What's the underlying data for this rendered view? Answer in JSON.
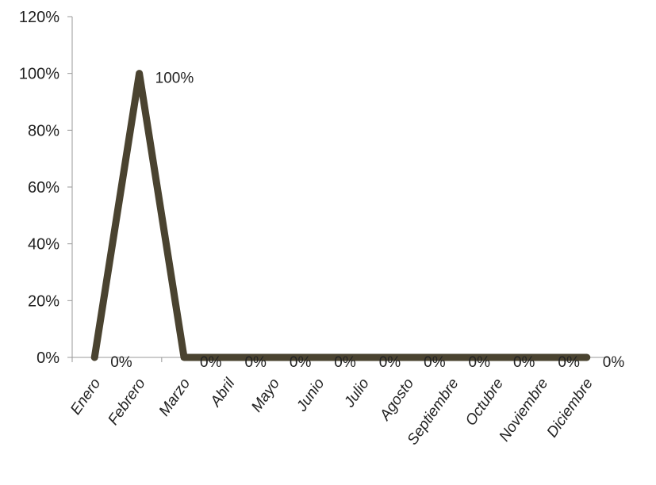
{
  "chart_data": {
    "type": "line",
    "categories": [
      "Enero",
      "Febrero",
      "Marzo",
      "Abril",
      "Mayo",
      "Junio",
      "Julio",
      "Agosto",
      "Septiembre",
      "Octubre",
      "Noviembre",
      "Diciembre"
    ],
    "series": [
      {
        "values": [
          0,
          100,
          0,
          0,
          0,
          0,
          0,
          0,
          0,
          0,
          0,
          0
        ],
        "data_labels": [
          "0%",
          "100%",
          "0%",
          "0%",
          "0%",
          "0%",
          "0%",
          "0%",
          "0%",
          "0%",
          "0%",
          "0%"
        ],
        "color": "#4a4330"
      }
    ],
    "title": "",
    "xlabel": "",
    "ylabel": "",
    "ylim": [
      0,
      120
    ],
    "yticks": [
      "0%",
      "20%",
      "40%",
      "60%",
      "80%",
      "100%",
      "120%"
    ],
    "grid": false,
    "legend": "none",
    "axis_color": "#999999"
  }
}
